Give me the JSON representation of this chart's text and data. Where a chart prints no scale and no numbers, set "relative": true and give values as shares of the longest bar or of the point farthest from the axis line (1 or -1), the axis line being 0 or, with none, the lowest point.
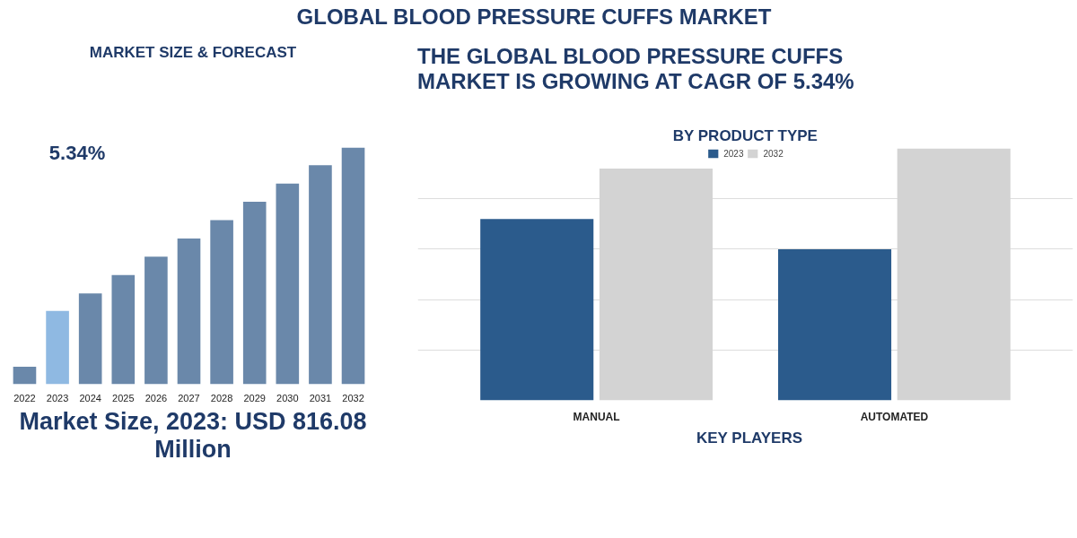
{
  "chart_data": [
    {
      "type": "bar",
      "title": "MARKET SIZE & FORECAST",
      "categories": [
        "2022",
        "2023",
        "2024",
        "2025",
        "2026",
        "2027",
        "2028",
        "2029",
        "2030",
        "2031",
        "2032"
      ],
      "values": [
        0.074,
        0.31,
        0.384,
        0.461,
        0.539,
        0.616,
        0.694,
        0.771,
        0.848,
        0.926,
        1.0
      ],
      "colors": [
        "#6a88aa",
        "#8fb9e2",
        "#6a88aa",
        "#6a88aa",
        "#6a88aa",
        "#6a88aa",
        "#6a88aa",
        "#6a88aa",
        "#6a88aa",
        "#6a88aa",
        "#6a88aa"
      ],
      "relative": true,
      "annotations": [
        "GLOBAL BLOOD PRESSURE CUFFS MARKET",
        "5.34%",
        "Market Size, 2023: USD 816.08 Million"
      ]
    },
    {
      "type": "bar",
      "title": "BY PRODUCT TYPE",
      "categories": [
        "MANUAL",
        "AUTOMATED"
      ],
      "series": [
        {
          "name": "2023",
          "color": "#2b5b8c",
          "values": [
            0.72,
            0.6
          ]
        },
        {
          "name": "2032",
          "color": "#d3d3d3",
          "values": [
            0.92,
            1.0
          ]
        }
      ],
      "relative": true,
      "grid": "y",
      "legend": "top",
      "annotations": [
        "THE GLOBAL BLOOD PRESSURE CUFFS MARKET IS GROWING AT CAGR OF 5.34%",
        "KEY PLAYERS"
      ]
    }
  ]
}
